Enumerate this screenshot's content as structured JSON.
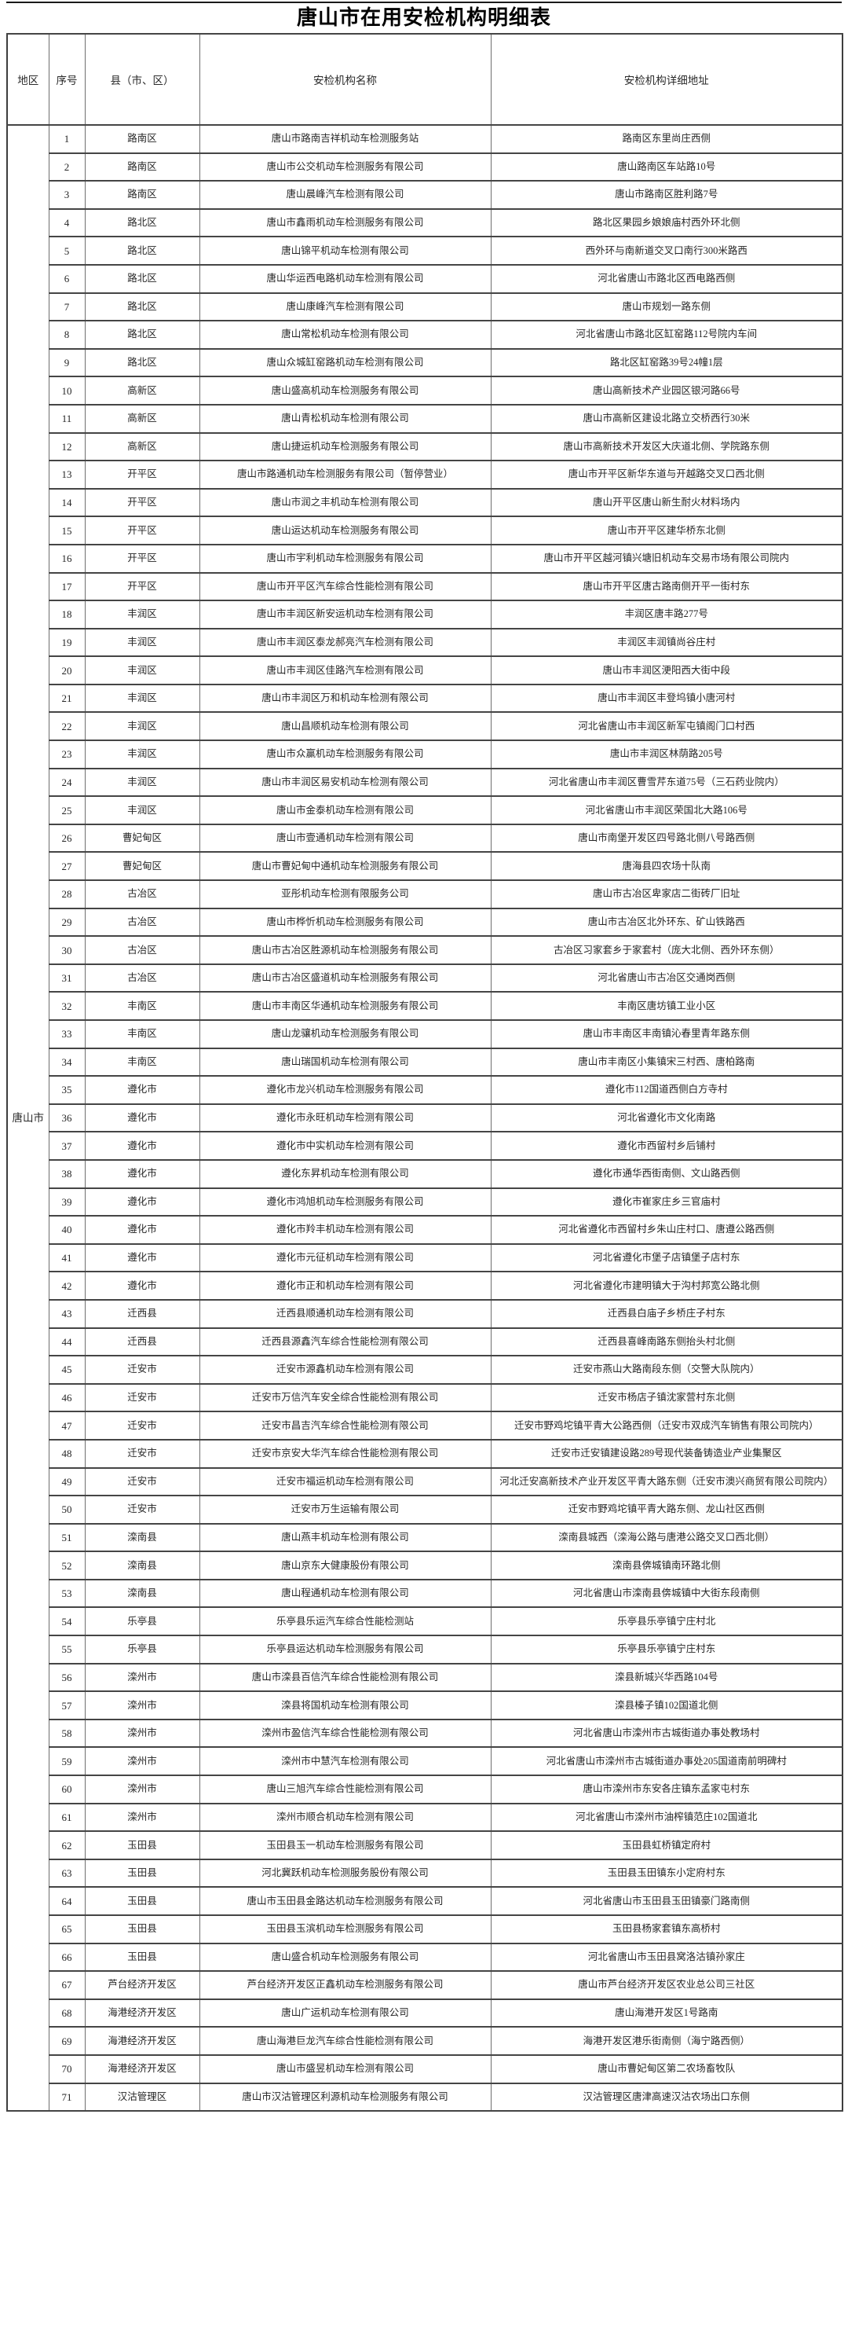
{
  "title": "唐山市在用安检机构明细表",
  "region_label": "唐山市",
  "columns": {
    "region": "地区",
    "index": "序号",
    "county": "县（市、区）",
    "name": "安检机构名称",
    "address": "安检机构详细地址"
  },
  "rows": [
    {
      "no": "1",
      "county": "路南区",
      "name": "唐山市路南吉祥机动车检测服务站",
      "address": "路南区东里尚庄西侧"
    },
    {
      "no": "2",
      "county": "路南区",
      "name": "唐山市公交机动车检测服务有限公司",
      "address": "唐山路南区车站路10号"
    },
    {
      "no": "3",
      "county": "路南区",
      "name": "唐山晨峰汽车检测有限公司",
      "address": "唐山市路南区胜利路7号"
    },
    {
      "no": "4",
      "county": "路北区",
      "name": "唐山市鑫雨机动车检测服务有限公司",
      "address": "路北区果园乡娘娘庙村西外环北侧"
    },
    {
      "no": "5",
      "county": "路北区",
      "name": "唐山锦平机动车检测有限公司",
      "address": "西外环与南新道交叉口南行300米路西"
    },
    {
      "no": "6",
      "county": "路北区",
      "name": "唐山华运西电路机动车检测有限公司",
      "address": "河北省唐山市路北区西电路西侧"
    },
    {
      "no": "7",
      "county": "路北区",
      "name": "唐山康峰汽车检测有限公司",
      "address": "唐山市规划一路东侧"
    },
    {
      "no": "8",
      "county": "路北区",
      "name": "唐山常松机动车检测有限公司",
      "address": "河北省唐山市路北区缸窑路112号院内车间"
    },
    {
      "no": "9",
      "county": "路北区",
      "name": "唐山众城缸窑路机动车检测有限公司",
      "address": "路北区缸窑路39号24幢1层"
    },
    {
      "no": "10",
      "county": "高新区",
      "name": "唐山盛高机动车检测服务有限公司",
      "address": "唐山高新技术产业园区银河路66号"
    },
    {
      "no": "11",
      "county": "高新区",
      "name": "唐山青松机动车检测有限公司",
      "address": "唐山市高新区建设北路立交桥西行30米"
    },
    {
      "no": "12",
      "county": "高新区",
      "name": "唐山捷运机动车检测服务有限公司",
      "address": "唐山市高新技术开发区大庆道北侧、学院路东侧"
    },
    {
      "no": "13",
      "county": "开平区",
      "name": "唐山市路通机动车检测服务有限公司（暂停营业）",
      "address": "唐山市开平区新华东道与开越路交叉口西北侧"
    },
    {
      "no": "14",
      "county": "开平区",
      "name": "唐山市润之丰机动车检测有限公司",
      "address": "唐山开平区唐山新生耐火材料场内"
    },
    {
      "no": "15",
      "county": "开平区",
      "name": "唐山运达机动车检测服务有限公司",
      "address": "唐山市开平区建华桥东北侧"
    },
    {
      "no": "16",
      "county": "开平区",
      "name": "唐山市宇利机动车检测服务有限公司",
      "address": "唐山市开平区越河镇兴塘旧机动车交易市场有限公司院内"
    },
    {
      "no": "17",
      "county": "开平区",
      "name": "唐山市开平区汽车综合性能检测有限公司",
      "address": "唐山市开平区唐古路南侧开平一街村东"
    },
    {
      "no": "18",
      "county": "丰润区",
      "name": "唐山市丰润区新安运机动车检测有限公司",
      "address": "丰润区唐丰路277号"
    },
    {
      "no": "19",
      "county": "丰润区",
      "name": "唐山市丰润区泰龙郝亮汽车检测有限公司",
      "address": "丰润区丰润镇尚谷庄村"
    },
    {
      "no": "20",
      "county": "丰润区",
      "name": "唐山市丰润区佳路汽车检测有限公司",
      "address": "唐山市丰润区浭阳西大街中段"
    },
    {
      "no": "21",
      "county": "丰润区",
      "name": "唐山市丰润区万和机动车检测有限公司",
      "address": "唐山市丰润区丰登坞镇小唐河村"
    },
    {
      "no": "22",
      "county": "丰润区",
      "name": "唐山昌顺机动车检测有限公司",
      "address": "河北省唐山市丰润区新军屯镇阁门口村西"
    },
    {
      "no": "23",
      "county": "丰润区",
      "name": "唐山市众赢机动车检测服务有限公司",
      "address": "唐山市丰润区林荫路205号"
    },
    {
      "no": "24",
      "county": "丰润区",
      "name": "唐山市丰润区易安机动车检测有限公司",
      "address": "河北省唐山市丰润区曹雪芹东道75号（三石药业院内）"
    },
    {
      "no": "25",
      "county": "丰润区",
      "name": "唐山市金泰机动车检测有限公司",
      "address": "河北省唐山市丰润区荣国北大路106号"
    },
    {
      "no": "26",
      "county": "曹妃甸区",
      "name": "唐山市壹通机动车检测有限公司",
      "address": "唐山市南堡开发区四号路北侧八号路西侧"
    },
    {
      "no": "27",
      "county": "曹妃甸区",
      "name": "唐山市曹妃甸中通机动车检测服务有限公司",
      "address": "唐海县四农场十队南"
    },
    {
      "no": "28",
      "county": "古冶区",
      "name": "亚彤机动车检测有限服务公司",
      "address": "唐山市古冶区卑家店二街砖厂旧址"
    },
    {
      "no": "29",
      "county": "古冶区",
      "name": "唐山市桦忻机动车检测服务有限公司",
      "address": "唐山市古冶区北外环东、矿山铁路西"
    },
    {
      "no": "30",
      "county": "古冶区",
      "name": "唐山市古冶区胜源机动车检测服务有限公司",
      "address": "古冶区习家套乡于家套村（庞大北侧、西外环东侧）"
    },
    {
      "no": "31",
      "county": "古冶区",
      "name": "唐山市古冶区盛道机动车检测服务有限公司",
      "address": "河北省唐山市古冶区交通岗西侧"
    },
    {
      "no": "32",
      "county": "丰南区",
      "name": "唐山市丰南区华通机动车检测服务有限公司",
      "address": "丰南区唐坊镇工业小区"
    },
    {
      "no": "33",
      "county": "丰南区",
      "name": "唐山龙骧机动车检测服务有限公司",
      "address": "唐山市丰南区丰南镇沁春里青年路东侧"
    },
    {
      "no": "34",
      "county": "丰南区",
      "name": "唐山瑞国机动车检测有限公司",
      "address": "唐山市丰南区小集镇宋三村西、唐柏路南"
    },
    {
      "no": "35",
      "county": "遵化市",
      "name": "遵化市龙兴机动车检测服务有限公司",
      "address": "遵化市112国道西侧白方寺村"
    },
    {
      "no": "36",
      "county": "遵化市",
      "name": "遵化市永旺机动车检测有限公司",
      "address": "河北省遵化市文化南路"
    },
    {
      "no": "37",
      "county": "遵化市",
      "name": "遵化市中实机动车检测有限公司",
      "address": "遵化市西留村乡后铺村"
    },
    {
      "no": "38",
      "county": "遵化市",
      "name": "遵化东昇机动车检测有限公司",
      "address": "遵化市通华西街南侧、文山路西侧"
    },
    {
      "no": "39",
      "county": "遵化市",
      "name": "遵化市鸿旭机动车检测服务有限公司",
      "address": "遵化市崔家庄乡三官庙村"
    },
    {
      "no": "40",
      "county": "遵化市",
      "name": "遵化市羚丰机动车检测有限公司",
      "address": "河北省遵化市西留村乡朱山庄村口、唐遵公路西侧"
    },
    {
      "no": "41",
      "county": "遵化市",
      "name": "遵化市元征机动车检测有限公司",
      "address": "河北省遵化市堡子店镇堡子店村东"
    },
    {
      "no": "42",
      "county": "遵化市",
      "name": "遵化市正和机动车检测有限公司",
      "address": "河北省遵化市建明镇大于沟村邦宽公路北侧"
    },
    {
      "no": "43",
      "county": "迁西县",
      "name": "迁西县顺通机动车检测有限公司",
      "address": "迁西县白庙子乡桥庄子村东"
    },
    {
      "no": "44",
      "county": "迁西县",
      "name": "迁西县源鑫汽车综合性能检测有限公司",
      "address": "迁西县喜峰南路东侧抬头村北侧"
    },
    {
      "no": "45",
      "county": "迁安市",
      "name": "迁安市源鑫机动车检测有限公司",
      "address": "迁安市燕山大路南段东侧（交警大队院内）"
    },
    {
      "no": "46",
      "county": "迁安市",
      "name": "迁安市万信汽车安全综合性能检测有限公司",
      "address": "迁安市杨店子镇沈家营村东北侧"
    },
    {
      "no": "47",
      "county": "迁安市",
      "name": "迁安市昌吉汽车综合性能检测有限公司",
      "address": "迁安市野鸡坨镇平青大公路西侧（迁安市双成汽车销售有限公司院内）"
    },
    {
      "no": "48",
      "county": "迁安市",
      "name": "迁安市京安大华汽车综合性能检测有限公司",
      "address": "迁安市迁安镇建设路289号现代装备铸造业产业集聚区"
    },
    {
      "no": "49",
      "county": "迁安市",
      "name": "迁安市福运机动车检测有限公司",
      "address": "河北迁安高新技术产业开发区平青大路东侧（迁安市澳兴商贸有限公司院内）"
    },
    {
      "no": "50",
      "county": "迁安市",
      "name": "迁安市万生运输有限公司",
      "address": "迁安市野鸡坨镇平青大路东侧、龙山社区西侧"
    },
    {
      "no": "51",
      "county": "滦南县",
      "name": "唐山燕丰机动车检测有限公司",
      "address": "滦南县城西（滦海公路与唐港公路交叉口西北侧）"
    },
    {
      "no": "52",
      "county": "滦南县",
      "name": "唐山京东大健康股份有限公司",
      "address": "滦南县倴城镇南环路北侧"
    },
    {
      "no": "53",
      "county": "滦南县",
      "name": "唐山程通机动车检测有限公司",
      "address": "河北省唐山市滦南县倴城镇中大街东段南侧"
    },
    {
      "no": "54",
      "county": "乐亭县",
      "name": "乐亭县乐运汽车综合性能检测站",
      "address": "乐亭县乐亭镇宁庄村北"
    },
    {
      "no": "55",
      "county": "乐亭县",
      "name": "乐亭县运达机动车检测服务有限公司",
      "address": "乐亭县乐亭镇宁庄村东"
    },
    {
      "no": "56",
      "county": "滦州市",
      "name": "唐山市滦县百信汽车综合性能检测有限公司",
      "address": "滦县新城兴华西路104号"
    },
    {
      "no": "57",
      "county": "滦州市",
      "name": "滦县将国机动车检测有限公司",
      "address": "滦县榛子镇102国道北侧"
    },
    {
      "no": "58",
      "county": "滦州市",
      "name": "滦州市盈信汽车综合性能检测有限公司",
      "address": "河北省唐山市滦州市古城街道办事处教场村"
    },
    {
      "no": "59",
      "county": "滦州市",
      "name": "滦州市中慧汽车检测有限公司",
      "address": "河北省唐山市滦州市古城街道办事处205国道南前明碑村"
    },
    {
      "no": "60",
      "county": "滦州市",
      "name": "唐山三旭汽车综合性能检测有限公司",
      "address": "唐山市滦州市东安各庄镇东孟家屯村东"
    },
    {
      "no": "61",
      "county": "滦州市",
      "name": "滦州市顺合机动车检测有限公司",
      "address": "河北省唐山市滦州市油榨镇范庄102国道北"
    },
    {
      "no": "62",
      "county": "玉田县",
      "name": "玉田县玉一机动车检测服务有限公司",
      "address": "玉田县虹桥镇定府村"
    },
    {
      "no": "63",
      "county": "玉田县",
      "name": "河北冀跃机动车检测服务股份有限公司",
      "address": "玉田县玉田镇东小定府村东"
    },
    {
      "no": "64",
      "county": "玉田县",
      "name": "唐山市玉田县金路达机动车检测服务有限公司",
      "address": "河北省唐山市玉田县玉田镇豪门路南侧"
    },
    {
      "no": "65",
      "county": "玉田县",
      "name": "玉田县玉滨机动车检测服务有限公司",
      "address": "玉田县杨家套镇东高桥村"
    },
    {
      "no": "66",
      "county": "玉田县",
      "name": "唐山盛合机动车检测服务有限公司",
      "address": "河北省唐山市玉田县窝洛沽镇孙家庄"
    },
    {
      "no": "67",
      "county": "芦台经济开发区",
      "name": "芦台经济开发区正鑫机动车检测服务有限公司",
      "address": "唐山市芦台经济开发区农业总公司三社区"
    },
    {
      "no": "68",
      "county": "海港经济开发区",
      "name": "唐山广运机动车检测有限公司",
      "address": "唐山海港开发区1号路南"
    },
    {
      "no": "69",
      "county": "海港经济开发区",
      "name": "唐山海港巨龙汽车综合性能检测有限公司",
      "address": "海港开发区港乐街南侧（海宁路西侧）"
    },
    {
      "no": "70",
      "county": "海港经济开发区",
      "name": "唐山市盛昱机动车检测有限公司",
      "address": "唐山市曹妃甸区第二农场畜牧队"
    },
    {
      "no": "71",
      "county": "汉沽管理区",
      "name": "唐山市汉沽管理区利源机动车检测服务有限公司",
      "address": "汉沽管理区唐津高速汉沽农场出口东侧"
    }
  ]
}
